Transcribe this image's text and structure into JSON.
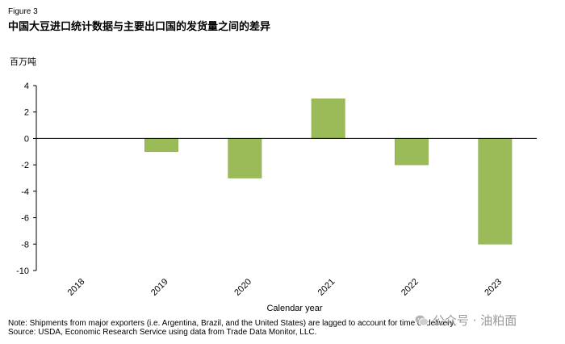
{
  "figure_label": "Figure 3",
  "title": "中国大豆进口统计数据与主要出口国的发货量之间的差异",
  "y_unit": "百万吨",
  "note": "Note: Shipments  from major  exporters (i.e. Argentina, Brazil, and the United States) are lagged to account for time of delivery.",
  "source": "Source: USDA, Economic Research Service using data from Trade Data Monitor,  LLC.",
  "watermark": "公众号 · 油粕面",
  "colors": {
    "bar": "#9bbb59",
    "bar_edge": "#8aab4c",
    "axis": "#000000"
  },
  "chart_data": {
    "type": "bar",
    "categories": [
      "2018",
      "2019",
      "2020",
      "2021",
      "2022",
      "2023"
    ],
    "values": [
      0,
      -1,
      -3,
      3,
      -2,
      -8
    ],
    "title": "中国大豆进口统计数据与主要出口国的发货量之间的差异",
    "xlabel": "Calendar year",
    "ylabel": "百万吨",
    "ylim": [
      -10,
      4
    ],
    "yticks": [
      4,
      2,
      0,
      -2,
      -4,
      -6,
      -8,
      -10
    ],
    "grid": false,
    "legend": "none"
  }
}
